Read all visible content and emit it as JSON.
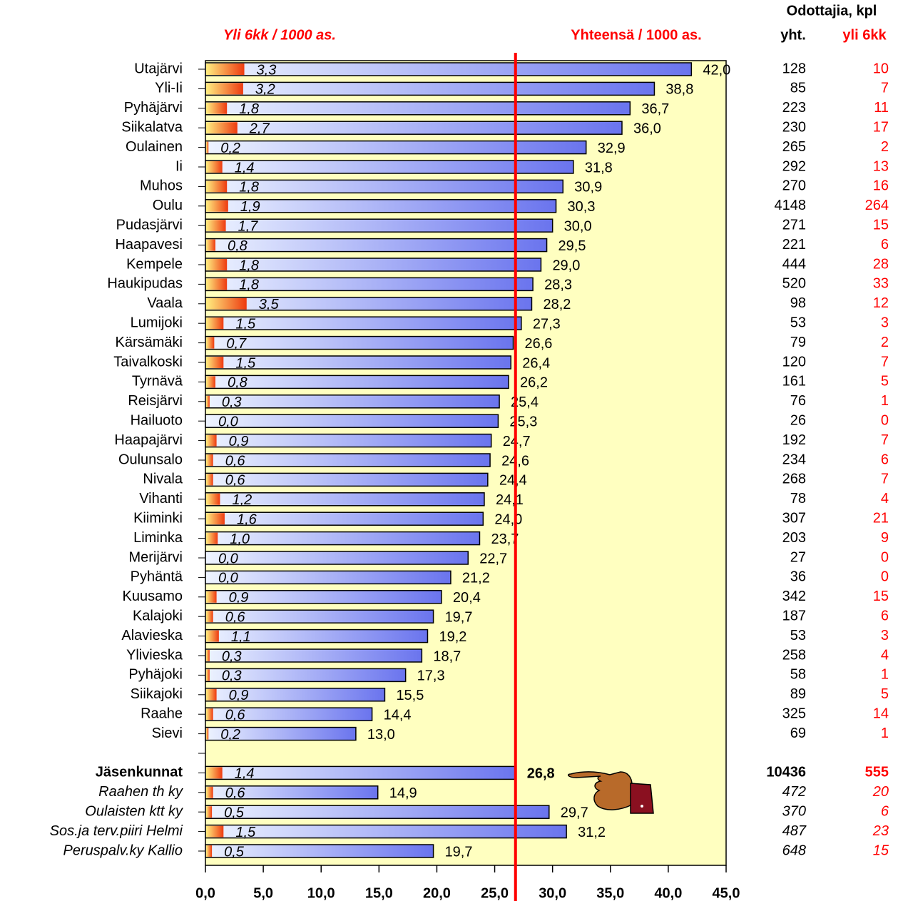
{
  "chart_data": {
    "type": "bar",
    "categories": [
      "Utajärvi",
      "Yli-Ii",
      "Pyhäjärvi",
      "Siikalatva",
      "Oulainen",
      "Ii",
      "Muhos",
      "Oulu",
      "Pudasjärvi",
      "Haapavesi",
      "Kempele",
      "Haukipudas",
      "Vaala",
      "Lumijoki",
      "Kärsämäki",
      "Taivalkoski",
      "Tyrnävä",
      "Reisjärvi",
      "Hailuoto",
      "Haapajärvi",
      "Oulunsalo",
      "Nivala",
      "Vihanti",
      "Kiiminki",
      "Liminka",
      "Merijärvi",
      "Pyhäntä",
      "Kuusamo",
      "Kalajoki",
      "Alavieska",
      "Ylivieska",
      "Pyhäjoki",
      "Siikajoki",
      "Raahe",
      "Sievi",
      null,
      "Jäsenkunnat",
      "Raahen th ky",
      "Oulaisten ktt ky",
      "Sos.ja terv.piiri Helmi",
      "Peruspalv.ky Kallio"
    ],
    "series": [
      {
        "name": "Yhteensä / 1000 as.",
        "color": "#6a74ee",
        "values": [
          42.0,
          38.8,
          36.7,
          36.0,
          32.9,
          31.8,
          30.9,
          30.3,
          30.0,
          29.5,
          29.0,
          28.3,
          28.2,
          27.3,
          26.6,
          26.4,
          26.2,
          25.4,
          25.3,
          24.7,
          24.6,
          24.4,
          24.1,
          24.0,
          23.7,
          22.7,
          21.2,
          20.4,
          19.7,
          19.2,
          18.7,
          17.3,
          15.5,
          14.4,
          13.0,
          null,
          26.8,
          14.9,
          29.7,
          31.2,
          19.7
        ],
        "value_labels": [
          "42,0",
          "38,8",
          "36,7",
          "36,0",
          "32,9",
          "31,8",
          "30,9",
          "30,3",
          "30,0",
          "29,5",
          "29,0",
          "28,3",
          "28,2",
          "27,3",
          "26,6",
          "26,4",
          "26,2",
          "25,4",
          "25,3",
          "24,7",
          "24,6",
          "24,4",
          "24,1",
          "24,0",
          "23,7",
          "22,7",
          "21,2",
          "20,4",
          "19,7",
          "19,2",
          "18,7",
          "17,3",
          "15,5",
          "14,4",
          "13,0",
          null,
          "26,8",
          "14,9",
          "29,7",
          "31,2",
          "19,7"
        ]
      },
      {
        "name": "Yli 6kk / 1000 as.",
        "color": "#ee3a10",
        "values": [
          3.3,
          3.2,
          1.8,
          2.7,
          0.2,
          1.4,
          1.8,
          1.9,
          1.7,
          0.8,
          1.8,
          1.8,
          3.5,
          1.5,
          0.7,
          1.5,
          0.8,
          0.3,
          0.0,
          0.9,
          0.6,
          0.6,
          1.2,
          1.6,
          1.0,
          0.0,
          0.0,
          0.9,
          0.6,
          1.1,
          0.3,
          0.3,
          0.9,
          0.6,
          0.2,
          null,
          1.4,
          0.6,
          0.5,
          1.5,
          0.5
        ],
        "value_labels": [
          "3,3",
          "3,2",
          "1,8",
          "2,7",
          "0,2",
          "1,4",
          "1,8",
          "1,9",
          "1,7",
          "0,8",
          "1,8",
          "1,8",
          "3,5",
          "1,5",
          "0,7",
          "1,5",
          "0,8",
          "0,3",
          "0,0",
          "0,9",
          "0,6",
          "0,6",
          "1,2",
          "1,6",
          "1,0",
          "0,0",
          "0,0",
          "0,9",
          "0,6",
          "1,1",
          "0,3",
          "0,3",
          "0,9",
          "0,6",
          "0,2",
          null,
          "1,4",
          "0,6",
          "0,5",
          "1,5",
          "0,5"
        ]
      }
    ],
    "xlim": [
      0,
      45
    ],
    "xticks": [
      {
        "value": 0,
        "label": "0,0"
      },
      {
        "value": 5,
        "label": "5,0"
      },
      {
        "value": 10,
        "label": "10,0"
      },
      {
        "value": 15,
        "label": "15,0"
      },
      {
        "value": 20,
        "label": "20,0"
      },
      {
        "value": 25,
        "label": "25,0"
      },
      {
        "value": 30,
        "label": "30,0"
      },
      {
        "value": 35,
        "label": "35,0"
      },
      {
        "value": 40,
        "label": "40,0"
      },
      {
        "value": 45,
        "label": "45,0"
      }
    ],
    "reference_line": {
      "value": 26.8,
      "color": "#ff0000"
    },
    "table": {
      "title": "Odottajia, kpl",
      "columns": [
        {
          "name": "yht.",
          "color": "#000000",
          "values": [
            128,
            85,
            223,
            230,
            265,
            292,
            270,
            4148,
            271,
            221,
            444,
            520,
            98,
            53,
            79,
            120,
            161,
            76,
            26,
            192,
            234,
            268,
            78,
            307,
            203,
            27,
            36,
            342,
            187,
            53,
            258,
            58,
            89,
            325,
            69,
            null,
            10436,
            472,
            370,
            487,
            648
          ]
        },
        {
          "name": "yli 6kk",
          "color": "#ff0000",
          "values": [
            10,
            7,
            11,
            17,
            2,
            13,
            16,
            264,
            15,
            6,
            28,
            33,
            12,
            3,
            2,
            7,
            5,
            1,
            0,
            7,
            6,
            7,
            4,
            21,
            9,
            0,
            0,
            15,
            6,
            3,
            4,
            1,
            5,
            14,
            1,
            null,
            555,
            20,
            6,
            23,
            15
          ]
        }
      ]
    }
  }
}
